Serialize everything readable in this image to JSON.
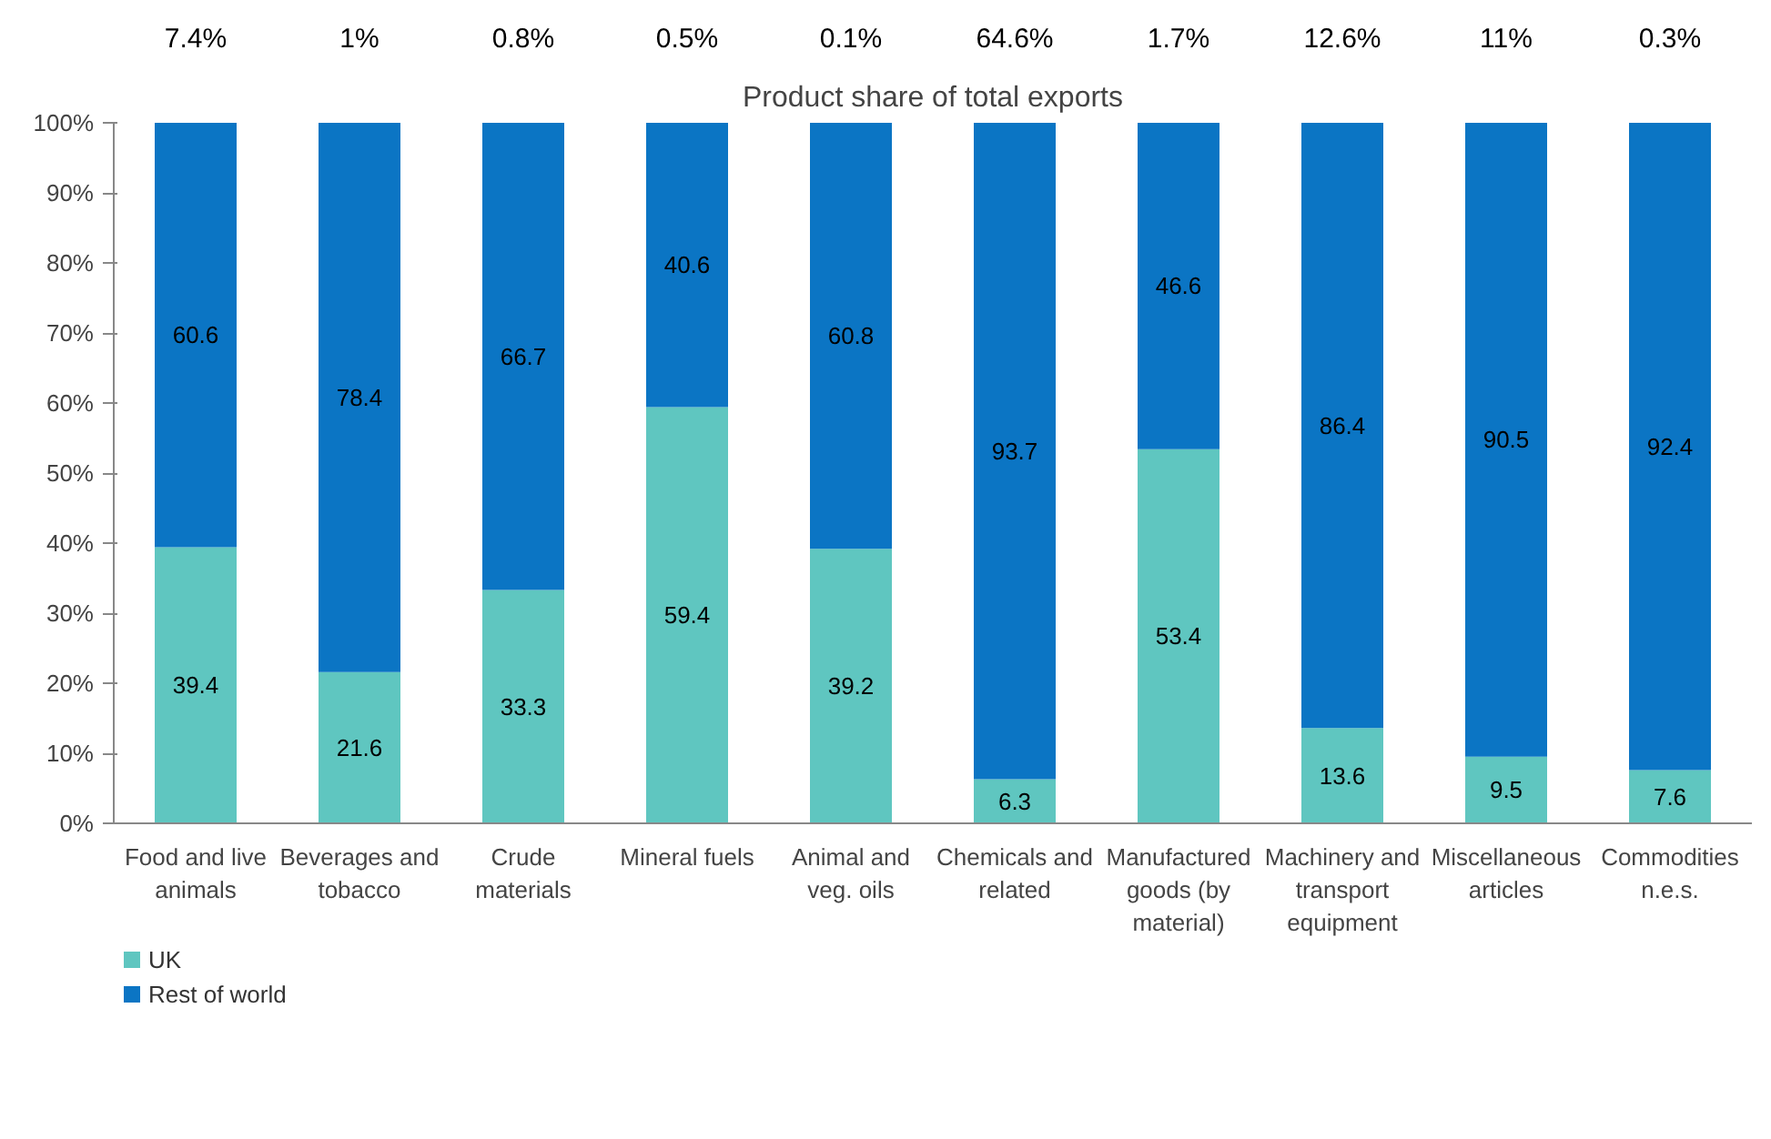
{
  "chart_data": {
    "type": "bar",
    "stacked": true,
    "title": "Product share of total exports",
    "categories": [
      "Food and live\nanimals",
      "Beverages and\ntobacco",
      "Crude\nmaterials",
      "Mineral fuels",
      "Animal and\nveg. oils",
      "Chemicals and\nrelated",
      "Manufactured\ngoods (by\nmaterial)",
      "Machinery and\ntransport\nequipment",
      "Miscellaneous\narticles",
      "Commodities\nn.e.s."
    ],
    "series": [
      {
        "name": "UK",
        "color": "#5fc6c0",
        "values": [
          39.4,
          21.6,
          33.3,
          59.4,
          39.2,
          6.3,
          53.4,
          13.6,
          9.5,
          7.6
        ]
      },
      {
        "name": "Rest of world",
        "color": "#0b75c4",
        "values": [
          60.6,
          78.4,
          66.7,
          40.6,
          60.8,
          93.7,
          46.6,
          86.4,
          90.5,
          92.4
        ]
      }
    ],
    "annotations": [
      "7.4%",
      "1%",
      "0.8%",
      "0.5%",
      "0.1%",
      "64.6%",
      "1.7%",
      "12.6%",
      "11%",
      "0.3%"
    ],
    "ylim": [
      0,
      100
    ],
    "yticks": [
      {
        "value": 0,
        "label": "0%"
      },
      {
        "value": 10,
        "label": "10%"
      },
      {
        "value": 20,
        "label": "20%"
      },
      {
        "value": 30,
        "label": "30%"
      },
      {
        "value": 40,
        "label": "40%"
      },
      {
        "value": 50,
        "label": "50%"
      },
      {
        "value": 60,
        "label": "60%"
      },
      {
        "value": 70,
        "label": "70%"
      },
      {
        "value": 80,
        "label": "80%"
      },
      {
        "value": 90,
        "label": "90%"
      },
      {
        "value": 100,
        "label": "100%"
      }
    ],
    "data_labels": true,
    "legend": "bottom",
    "grid": false
  }
}
